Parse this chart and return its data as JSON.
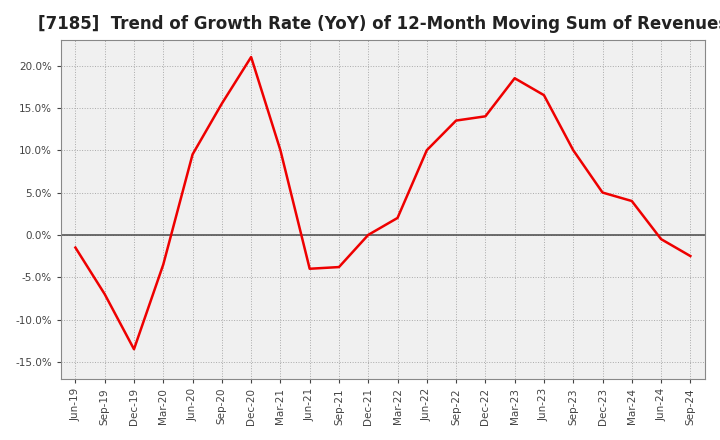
{
  "title": "[7185]  Trend of Growth Rate (YoY) of 12-Month Moving Sum of Revenues",
  "title_fontsize": 12,
  "line_color": "#ee0000",
  "background_color": "#ffffff",
  "plot_bg_color": "#f0f0f0",
  "grid_color": "#aaaaaa",
  "zero_line_color": "#555555",
  "ylim": [
    -17,
    23
  ],
  "yticks": [
    -15,
    -10,
    -5,
    0,
    5,
    10,
    15,
    20
  ],
  "x_labels": [
    "Jun-19",
    "Sep-19",
    "Dec-19",
    "Mar-20",
    "Jun-20",
    "Sep-20",
    "Dec-20",
    "Mar-21",
    "Jun-21",
    "Sep-21",
    "Dec-21",
    "Mar-22",
    "Jun-22",
    "Sep-22",
    "Dec-22",
    "Mar-23",
    "Jun-23",
    "Sep-23",
    "Dec-23",
    "Mar-24",
    "Jun-24",
    "Sep-24"
  ],
  "values": [
    -1.5,
    -7.0,
    -13.5,
    -3.5,
    9.5,
    15.5,
    21.0,
    10.0,
    -4.0,
    -3.8,
    0.0,
    2.0,
    10.0,
    13.5,
    14.0,
    18.5,
    16.5,
    10.0,
    5.0,
    4.0,
    -0.5,
    -2.5
  ]
}
